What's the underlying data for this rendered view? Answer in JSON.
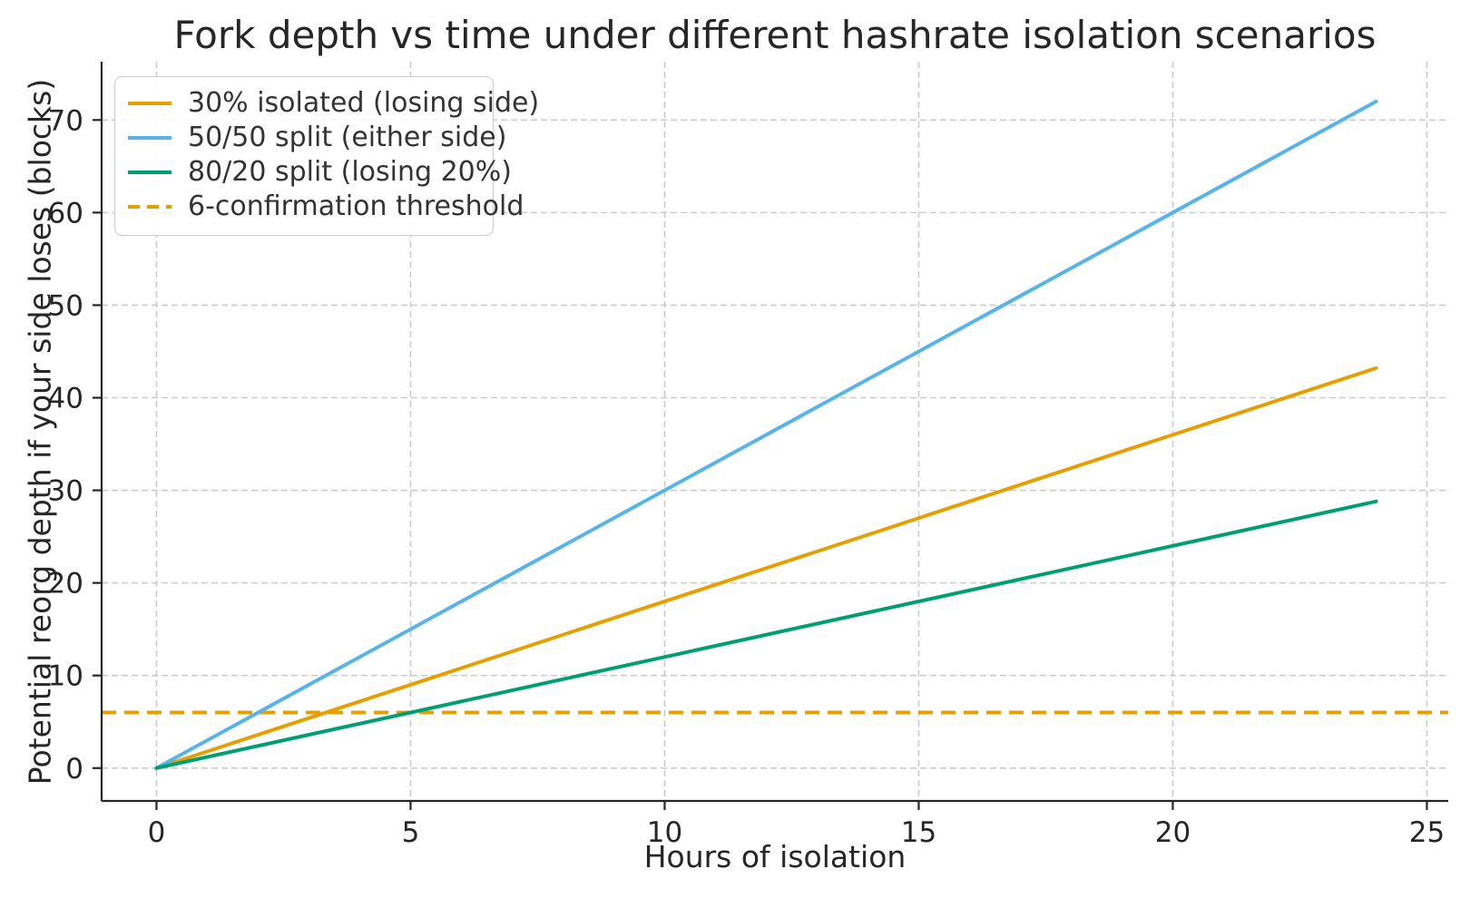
{
  "chart_data": {
    "type": "line",
    "title": "Fork depth vs time under different hashrate isolation scenarios",
    "xlabel": "Hours of isolation",
    "ylabel": "Potential reorg depth if your side loses (blocks)",
    "x_ticks": [
      0,
      5,
      10,
      15,
      20,
      25
    ],
    "y_ticks": [
      0,
      10,
      20,
      30,
      40,
      50,
      60,
      70
    ],
    "xlim": [
      -1.08,
      25.42
    ],
    "ylim": [
      -3.55,
      76.3
    ],
    "grid": true,
    "legend_position": "upper left",
    "x": [
      0,
      24
    ],
    "series": [
      {
        "name": "30% isolated (losing side)",
        "color": "#E69F00",
        "style": "solid",
        "blocks_per_hour": 1.8,
        "values": [
          0,
          43.2
        ]
      },
      {
        "name": "50/50 split (either side)",
        "color": "#56B4E9",
        "style": "solid",
        "blocks_per_hour": 3.0,
        "values": [
          0,
          72
        ]
      },
      {
        "name": "80/20 split (losing 20%)",
        "color": "#009E73",
        "style": "solid",
        "blocks_per_hour": 1.2,
        "values": [
          0,
          28.8
        ]
      }
    ],
    "threshold": {
      "name": "6-confirmation threshold",
      "color": "#E69F00",
      "style": "dashed",
      "value": 6
    },
    "colors": {
      "grid": "#cccccc",
      "spine": "#262626",
      "text": "#262626",
      "background": "#ffffff"
    }
  }
}
